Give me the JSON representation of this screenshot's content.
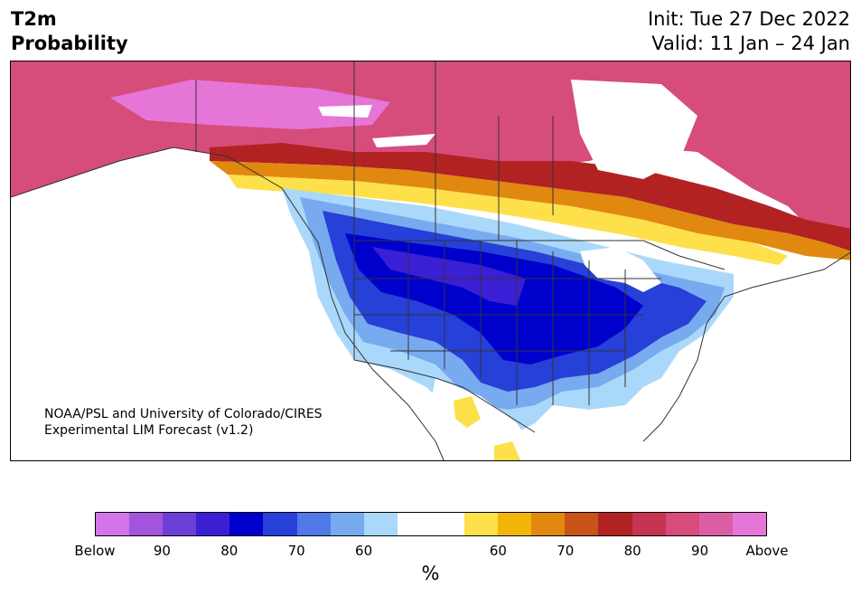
{
  "title": {
    "left_line1": "T2m",
    "left_line2": "Probability",
    "right_line1": "Init: Tue 27 Dec 2022",
    "right_line2": "Valid: 11 Jan – 24 Jan"
  },
  "credit": {
    "line1": "NOAA/PSL and University of Colorado/CIRES",
    "line2": "Experimental LIM Forecast (v1.2)"
  },
  "colorbar": {
    "colors": [
      "#d375e8",
      "#a355dc",
      "#6c3fd6",
      "#3b1fd4",
      "#0000cc",
      "#2640d8",
      "#5078e6",
      "#78aaf0",
      "#aad8fa",
      "#ffffff",
      "#ffffff",
      "#fde04a",
      "#f2b60a",
      "#e0880f",
      "#c85418",
      "#b22222",
      "#c53552",
      "#d64c7a",
      "#db5ea4",
      "#e675d8"
    ],
    "tick_labels": [
      "Below",
      "90",
      "80",
      "70",
      "60",
      "60",
      "70",
      "80",
      "90",
      "Above"
    ],
    "unit": "%"
  },
  "map_layers": {
    "ocean": "#ffffff",
    "land_neutral": "#ffffff",
    "border": "#333333"
  }
}
